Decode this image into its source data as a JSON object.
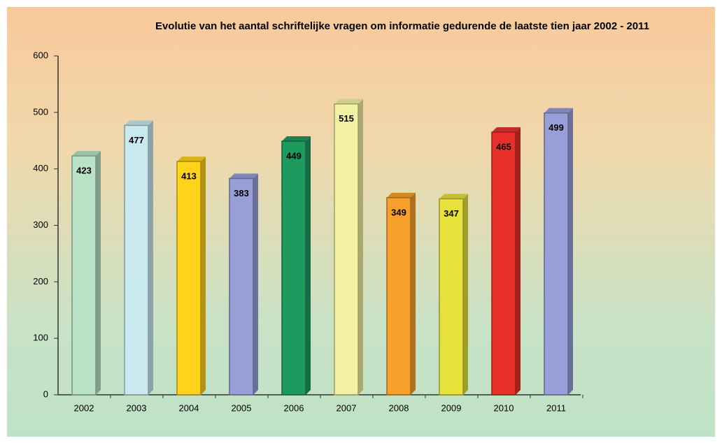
{
  "chart_data": {
    "type": "bar",
    "title": "Evolutie van het aantal schriftelijke vragen om informatie gedurende de laatste tien jaar 2002 - 2011",
    "categories": [
      "2002",
      "2003",
      "2004",
      "2005",
      "2006",
      "2007",
      "2008",
      "2009",
      "2010",
      "2011"
    ],
    "values": [
      423,
      477,
      413,
      383,
      449,
      515,
      349,
      347,
      465,
      499
    ],
    "colors": [
      "#b9e2c6",
      "#c9e9f0",
      "#ffd21c",
      "#979ed8",
      "#1e9a5e",
      "#f2f2a2",
      "#f7a02c",
      "#e8e23c",
      "#e8302a",
      "#979ed8"
    ],
    "ylim": [
      0,
      600
    ],
    "yticks": [
      0,
      100,
      200,
      300,
      400,
      500,
      600
    ]
  }
}
